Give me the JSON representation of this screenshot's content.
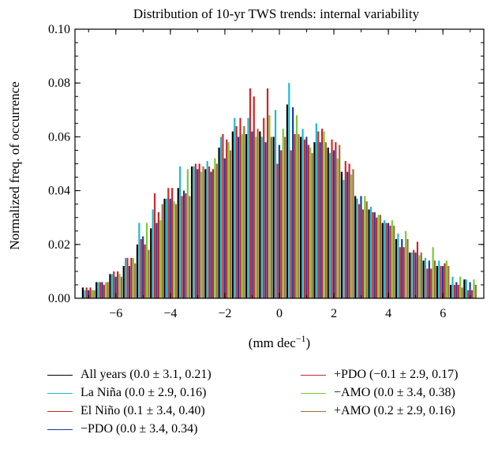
{
  "chart_data": {
    "type": "bar",
    "title": "Distribution of 10-yr TWS trends: internal variability",
    "xlabel": "(mm dec",
    "xlabel_sup": "−1",
    "xlabel_end": ")",
    "ylabel": "Normalized freq. of occurrence",
    "xlim": [
      -7.5,
      7.5
    ],
    "ylim": [
      0,
      0.1
    ],
    "x_ticks": [
      -6,
      -4,
      -2,
      0,
      2,
      4,
      6
    ],
    "x_tick_labels": [
      "−6",
      "−4",
      "−2",
      "0",
      "2",
      "4",
      "6"
    ],
    "y_ticks": [
      0,
      0.02,
      0.04,
      0.06,
      0.08,
      0.1
    ],
    "y_tick_labels": [
      "0.00",
      "0.02",
      "0.04",
      "0.06",
      "0.08",
      "0.10"
    ],
    "bin_centers": [
      -7,
      -6.5,
      -6,
      -5.5,
      -5,
      -4.5,
      -4,
      -3.5,
      -3,
      -2.5,
      -2,
      -1.5,
      -1,
      -0.5,
      0,
      0.5,
      1,
      1.5,
      2,
      2.5,
      3,
      3.5,
      4,
      4.5,
      5,
      5.5,
      6,
      6.5,
      7
    ],
    "series": [
      {
        "name": "All years (0.0 ± 3.1, 0.21)",
        "color": "#000000",
        "values": [
          0.004,
          0.006,
          0.009,
          0.012,
          0.02,
          0.026,
          0.037,
          0.041,
          0.049,
          0.048,
          0.056,
          0.062,
          0.061,
          0.062,
          0.06,
          0.072,
          0.06,
          0.058,
          0.056,
          0.047,
          0.038,
          0.033,
          0.028,
          0.022,
          0.017,
          0.014,
          0.012,
          0.005,
          0.007
        ]
      },
      {
        "name": "La Niña (0.0 ± 2.9, 0.16)",
        "color": "#1fb8c9",
        "values": [
          0.003,
          0.006,
          0.009,
          0.015,
          0.028,
          0.033,
          0.037,
          0.049,
          0.049,
          0.051,
          0.06,
          0.067,
          0.067,
          0.06,
          0.07,
          0.08,
          0.063,
          0.065,
          0.054,
          0.044,
          0.037,
          0.034,
          0.029,
          0.024,
          0.017,
          0.015,
          0.014,
          0.008,
          0.007
        ]
      },
      {
        "name": "El Niño (0.1 ± 3.4, 0.40)",
        "color": "#d0282c",
        "values": [
          0.004,
          0.006,
          0.01,
          0.015,
          0.022,
          0.039,
          0.041,
          0.038,
          0.05,
          0.049,
          0.061,
          0.064,
          0.078,
          0.067,
          0.05,
          0.055,
          0.059,
          0.062,
          0.059,
          0.051,
          0.035,
          0.032,
          0.028,
          0.019,
          0.018,
          0.011,
          0.012,
          0.005,
          0.003
        ]
      },
      {
        "name": "−PDO (0.0 ± 3.4, 0.34)",
        "color": "#1e3a9e",
        "values": [
          0.003,
          0.006,
          0.008,
          0.012,
          0.023,
          0.028,
          0.037,
          0.04,
          0.048,
          0.047,
          0.052,
          0.06,
          0.062,
          0.058,
          0.057,
          0.071,
          0.06,
          0.058,
          0.055,
          0.047,
          0.038,
          0.032,
          0.028,
          0.022,
          0.017,
          0.014,
          0.012,
          0.006,
          0.006
        ]
      },
      {
        "name": "+PDO (−0.1 ± 2.9, 0.17)",
        "color": "#c8232a",
        "values": [
          0.004,
          0.005,
          0.01,
          0.015,
          0.02,
          0.032,
          0.041,
          0.039,
          0.05,
          0.048,
          0.059,
          0.067,
          0.075,
          0.078,
          0.055,
          0.061,
          0.057,
          0.063,
          0.058,
          0.05,
          0.033,
          0.03,
          0.027,
          0.019,
          0.021,
          0.011,
          0.013,
          0.005,
          0.003
        ]
      },
      {
        "name": "−AMO (0.0 ± 3.4, 0.38)",
        "color": "#7cc832",
        "values": [
          0.003,
          0.006,
          0.009,
          0.015,
          0.028,
          0.029,
          0.036,
          0.048,
          0.047,
          0.052,
          0.058,
          0.061,
          0.06,
          0.068,
          0.063,
          0.068,
          0.056,
          0.062,
          0.052,
          0.046,
          0.038,
          0.031,
          0.029,
          0.025,
          0.016,
          0.019,
          0.014,
          0.008,
          0.007
        ]
      },
      {
        "name": "+AMO (0.2 ± 2.9, 0.16)",
        "color": "#a26a3c",
        "values": [
          0.003,
          0.006,
          0.008,
          0.013,
          0.018,
          0.035,
          0.035,
          0.038,
          0.049,
          0.05,
          0.055,
          0.064,
          0.063,
          0.06,
          0.06,
          0.061,
          0.054,
          0.058,
          0.057,
          0.048,
          0.036,
          0.031,
          0.027,
          0.022,
          0.017,
          0.014,
          0.012,
          0.004,
          0.005
        ]
      }
    ],
    "legend_placement": "bottom, two columns",
    "grid": false
  }
}
